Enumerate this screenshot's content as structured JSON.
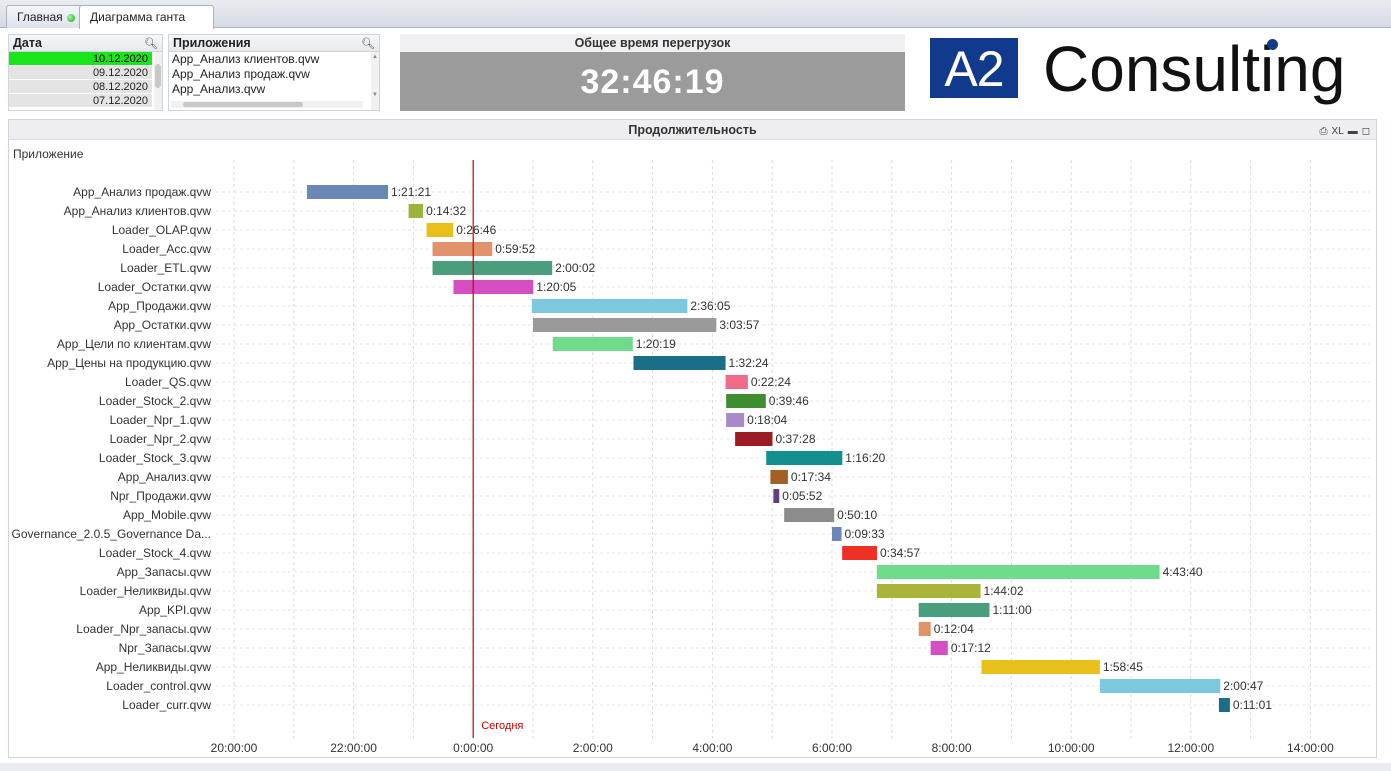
{
  "tabs": [
    {
      "label": "Главная",
      "status": "green"
    },
    {
      "label": "Диаграмма ганта"
    }
  ],
  "date_list": {
    "title": "Дата",
    "items": [
      {
        "label": "10.12.2020",
        "selected": true
      },
      {
        "label": "09.12.2020",
        "selected": false
      },
      {
        "label": "08.12.2020",
        "selected": false
      },
      {
        "label": "07.12.2020",
        "selected": false
      }
    ]
  },
  "app_list": {
    "title": "Приложения",
    "items": [
      "App_Анализ клиентов.qvw",
      "App_Анализ продаж.qvw",
      "App_Анализ.qvw"
    ]
  },
  "kpi": {
    "title": "Общее время перегрузок",
    "value": "32:46:19"
  },
  "logo": {
    "box": "A2",
    "text": "Consulting"
  },
  "chart_panel": {
    "title": "Продолжительность",
    "dimension_label": "Приложение",
    "xl_label": "XL"
  },
  "chart_data": {
    "type": "gantt",
    "title": "Продолжительность",
    "ylabel": "Приложение",
    "x_unit": "hours relative to 10.12.2020 0:00",
    "xlim": [
      -4.67,
      14.6
    ],
    "x_ticks": [
      -4,
      -2,
      0,
      2,
      4,
      6,
      8,
      10,
      12,
      14
    ],
    "x_tick_labels": [
      "20:00:00",
      "22:00:00",
      "0:00:00",
      "2:00:00",
      "4:00:00",
      "6:00:00",
      "8:00:00",
      "10:00:00",
      "12:00:00",
      "14:00:00"
    ],
    "today_marker": {
      "x": 0,
      "label": "Сегодня",
      "color": "#cc0000"
    },
    "grid": true,
    "tasks": [
      {
        "name": "App_Анализ продаж.qvw",
        "start": -2.78,
        "duration": "1:21:21",
        "color": "#6a87b8"
      },
      {
        "name": "App_Анализ клиентов.qvw",
        "start": -1.08,
        "duration": "0:14:32",
        "color": "#9ab53a"
      },
      {
        "name": "Loader_OLAP.qvw",
        "start": -0.78,
        "duration": "0:26:46",
        "color": "#e8c019"
      },
      {
        "name": "Loader_Acc.qvw",
        "start": -0.68,
        "duration": "0:59:52",
        "color": "#e0926a"
      },
      {
        "name": "Loader_ETL.qvw",
        "start": -0.68,
        "duration": "2:00:02",
        "color": "#4a9e7e"
      },
      {
        "name": "Loader_Остатки.qvw",
        "start": -0.33,
        "duration": "1:20:05",
        "color": "#d54fc3"
      },
      {
        "name": "App_Продажи.qvw",
        "start": 0.98,
        "duration": "2:36:05",
        "color": "#7cc8dc"
      },
      {
        "name": "App_Остатки.qvw",
        "start": 1.0,
        "duration": "3:03:57",
        "color": "#9a9a9a"
      },
      {
        "name": "App_Цели по клиентам.qvw",
        "start": 1.33,
        "duration": "1:20:19",
        "color": "#6fdc8c"
      },
      {
        "name": "App_Цены на продукцию.qvw",
        "start": 2.68,
        "duration": "1:32:24",
        "color": "#1b6e88"
      },
      {
        "name": "Loader_QS.qvw",
        "start": 4.22,
        "duration": "0:22:24",
        "color": "#f06a8a"
      },
      {
        "name": "Loader_Stock_2.qvw",
        "start": 4.23,
        "duration": "0:39:46",
        "color": "#3e8d2e"
      },
      {
        "name": "Loader_Npr_1.qvw",
        "start": 4.23,
        "duration": "0:18:04",
        "color": "#a98ac8"
      },
      {
        "name": "Loader_Npr_2.qvw",
        "start": 4.38,
        "duration": "0:37:28",
        "color": "#9b1c22"
      },
      {
        "name": "Loader_Stock_3.qvw",
        "start": 4.9,
        "duration": "1:16:20",
        "color": "#129090"
      },
      {
        "name": "App_Анализ.qvw",
        "start": 4.97,
        "duration": "0:17:34",
        "color": "#a45f24"
      },
      {
        "name": "Npr_Продажи.qvw",
        "start": 5.02,
        "duration": "0:05:52",
        "color": "#5d3f82"
      },
      {
        "name": "App_Mobile.qvw",
        "start": 5.2,
        "duration": "0:50:10",
        "color": "#8c8c8c"
      },
      {
        "name": "Governance_2.0.5_Governance Da...",
        "start": 6.0,
        "duration": "0:09:33",
        "color": "#6a87b8"
      },
      {
        "name": "Loader_Stock_4.qvw",
        "start": 6.17,
        "duration": "0:34:57",
        "color": "#ee3026"
      },
      {
        "name": "App_Запасы.qvw",
        "start": 6.75,
        "duration": "4:43:40",
        "color": "#6fdc8c"
      },
      {
        "name": "Loader_Неликвиды.qvw",
        "start": 6.75,
        "duration": "1:44:02",
        "color": "#a9b43a"
      },
      {
        "name": "App_KPI.qvw",
        "start": 7.45,
        "duration": "1:11:00",
        "color": "#4a9e7e"
      },
      {
        "name": "Loader_Npr_запасы.qvw",
        "start": 7.45,
        "duration": "0:12:04",
        "color": "#e0926a"
      },
      {
        "name": "Npr_Запасы.qvw",
        "start": 7.65,
        "duration": "0:17:12",
        "color": "#d54fc3"
      },
      {
        "name": "App_Неликвиды.qvw",
        "start": 8.5,
        "duration": "1:58:45",
        "color": "#e8c019"
      },
      {
        "name": "Loader_control.qvw",
        "start": 10.48,
        "duration": "2:00:47",
        "color": "#7cc8dc"
      },
      {
        "name": "Loader_curr.qvw",
        "start": 12.47,
        "duration": "0:11:01",
        "color": "#1b6e88"
      }
    ]
  }
}
